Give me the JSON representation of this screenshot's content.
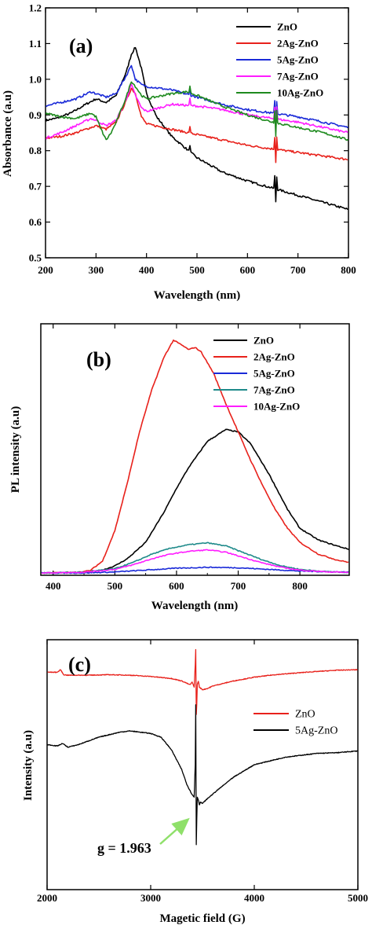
{
  "chart_data": [
    {
      "id": "a",
      "type": "line",
      "panel_label": "(a)",
      "xlabel": "Wavelength (nm)",
      "ylabel": "Absorbance (a.u)",
      "xlim": [
        200,
        800
      ],
      "ylim": [
        0.5,
        1.2
      ],
      "xticks": [
        200,
        300,
        400,
        500,
        600,
        700,
        800
      ],
      "yticks": [
        0.5,
        0.6,
        0.7,
        0.8,
        0.9,
        1.0,
        1.1,
        1.2
      ],
      "ytick_labels": [
        "0.5",
        "0.6",
        "0.7",
        "0.8",
        "0.9",
        "1.0",
        "1.1",
        "1.2"
      ],
      "legend_position": "top-right",
      "series": [
        {
          "name": "ZnO",
          "color": "#000000",
          "x": [
            200,
            220,
            250,
            280,
            300,
            320,
            340,
            360,
            370,
            378,
            390,
            400,
            420,
            450,
            500,
            550,
            600,
            650,
            700,
            750,
            800
          ],
          "y": [
            0.885,
            0.89,
            0.905,
            0.93,
            0.945,
            0.935,
            0.955,
            1.02,
            1.07,
            1.09,
            1.03,
            0.96,
            0.895,
            0.84,
            0.78,
            0.74,
            0.715,
            0.695,
            0.675,
            0.655,
            0.635
          ]
        },
        {
          "name": "2Ag-ZnO",
          "color": "#e8211b",
          "x": [
            200,
            230,
            260,
            300,
            320,
            340,
            360,
            370,
            378,
            390,
            400,
            450,
            500,
            550,
            600,
            650,
            700,
            750,
            800
          ],
          "y": [
            0.835,
            0.84,
            0.85,
            0.87,
            0.86,
            0.88,
            0.94,
            0.975,
            0.96,
            0.895,
            0.875,
            0.86,
            0.845,
            0.83,
            0.815,
            0.805,
            0.795,
            0.785,
            0.775
          ]
        },
        {
          "name": "5Ag-ZnO",
          "color": "#1a2ad8",
          "x": [
            200,
            230,
            260,
            290,
            300,
            320,
            340,
            360,
            370,
            378,
            390,
            400,
            450,
            500,
            550,
            600,
            650,
            700,
            750,
            800
          ],
          "y": [
            0.925,
            0.935,
            0.945,
            0.965,
            0.96,
            0.95,
            0.96,
            1.01,
            1.04,
            1.0,
            0.985,
            0.98,
            0.97,
            0.95,
            0.93,
            0.915,
            0.905,
            0.895,
            0.88,
            0.865
          ]
        },
        {
          "name": "7Ag-ZnO",
          "color": "#ff1cff",
          "x": [
            200,
            230,
            260,
            290,
            300,
            320,
            340,
            360,
            370,
            378,
            390,
            400,
            450,
            500,
            550,
            600,
            650,
            700,
            750,
            800
          ],
          "y": [
            0.835,
            0.85,
            0.87,
            0.89,
            0.885,
            0.87,
            0.885,
            0.945,
            0.985,
            0.955,
            0.92,
            0.91,
            0.93,
            0.925,
            0.915,
            0.9,
            0.89,
            0.88,
            0.865,
            0.85
          ]
        },
        {
          "name": "10Ag-ZnO",
          "color": "#1e8a1e",
          "x": [
            200,
            230,
            260,
            290,
            300,
            310,
            320,
            330,
            340,
            360,
            370,
            378,
            390,
            400,
            450,
            480,
            500,
            550,
            600,
            650,
            700,
            750,
            800
          ],
          "y": [
            0.905,
            0.895,
            0.89,
            0.905,
            0.895,
            0.86,
            0.83,
            0.85,
            0.88,
            0.95,
            0.995,
            0.98,
            0.955,
            0.945,
            0.96,
            0.965,
            0.955,
            0.925,
            0.9,
            0.88,
            0.865,
            0.85,
            0.83
          ]
        }
      ]
    },
    {
      "id": "b",
      "type": "line",
      "panel_label": "(b)",
      "xlabel": "Wavelength (nm)",
      "ylabel": "PL intensity (a.u)",
      "xlim": [
        380,
        880
      ],
      "ylim": [
        -0.01,
        1.06
      ],
      "xticks": [
        400,
        500,
        600,
        700,
        800
      ],
      "legend_position": "top-right",
      "series": [
        {
          "name": "ZnO",
          "color": "#000000",
          "x": [
            380,
            450,
            480,
            500,
            520,
            550,
            580,
            600,
            620,
            650,
            680,
            700,
            720,
            750,
            780,
            800,
            830,
            860,
            880
          ],
          "y": [
            0.0,
            0.003,
            0.012,
            0.03,
            0.06,
            0.13,
            0.26,
            0.36,
            0.45,
            0.56,
            0.61,
            0.6,
            0.55,
            0.42,
            0.27,
            0.19,
            0.14,
            0.115,
            0.1
          ]
        },
        {
          "name": "2Ag-ZnO",
          "color": "#e8211b",
          "x": [
            380,
            440,
            460,
            480,
            500,
            520,
            540,
            560,
            580,
            595,
            605,
            620,
            630,
            640,
            660,
            680,
            700,
            720,
            740,
            760,
            780,
            800,
            830,
            860,
            880
          ],
          "y": [
            0.0,
            0.002,
            0.01,
            0.05,
            0.18,
            0.38,
            0.6,
            0.78,
            0.92,
            0.99,
            0.975,
            0.95,
            0.96,
            0.94,
            0.85,
            0.72,
            0.6,
            0.48,
            0.37,
            0.27,
            0.19,
            0.13,
            0.08,
            0.055,
            0.045
          ]
        },
        {
          "name": "5Ag-ZnO",
          "color": "#1a2ad8",
          "x": [
            380,
            450,
            500,
            550,
            600,
            650,
            700,
            750,
            800,
            880
          ],
          "y": [
            0.0,
            0.0,
            0.004,
            0.012,
            0.02,
            0.024,
            0.022,
            0.015,
            0.008,
            0.003
          ]
        },
        {
          "name": "7Ag-ZnO",
          "color": "#1e8a8a",
          "x": [
            380,
            450,
            500,
            530,
            560,
            590,
            620,
            650,
            680,
            710,
            740,
            770,
            800,
            840,
            880
          ],
          "y": [
            0.0,
            0.003,
            0.018,
            0.045,
            0.08,
            0.105,
            0.12,
            0.128,
            0.115,
            0.085,
            0.055,
            0.03,
            0.015,
            0.006,
            0.002
          ]
        },
        {
          "name": "10Ag-ZnO",
          "color": "#ff1cff",
          "x": [
            380,
            450,
            500,
            530,
            560,
            590,
            620,
            650,
            680,
            710,
            740,
            770,
            800,
            840,
            880
          ],
          "y": [
            0.0,
            0.003,
            0.015,
            0.035,
            0.06,
            0.08,
            0.092,
            0.098,
            0.088,
            0.065,
            0.042,
            0.024,
            0.012,
            0.005,
            0.002
          ]
        }
      ]
    },
    {
      "id": "c",
      "type": "line",
      "panel_label": "(c)",
      "xlabel": "Magetic field (G)",
      "ylabel": "Intensity (a.u)",
      "xlim": [
        2000,
        5000
      ],
      "ylim": [
        0,
        1
      ],
      "xticks": [
        2000,
        3000,
        4000,
        5000
      ],
      "legend_position": "right",
      "annotation": "g = 1.963",
      "series": [
        {
          "name": "ZnO",
          "color": "#e8211b",
          "x": [
            2000,
            2100,
            2130,
            2160,
            2200,
            2400,
            2600,
            2800,
            3000,
            3200,
            3300,
            3380,
            3400,
            3420,
            3430,
            3435,
            3440,
            3445,
            3450,
            3460,
            3470,
            3500,
            3550,
            3600,
            3700,
            3800,
            4000,
            4200,
            4500,
            4800,
            5000
          ],
          "y": [
            0.87,
            0.87,
            0.88,
            0.86,
            0.858,
            0.858,
            0.86,
            0.858,
            0.853,
            0.845,
            0.835,
            0.82,
            0.83,
            0.81,
            0.9,
            0.96,
            0.7,
            0.74,
            0.82,
            0.835,
            0.81,
            0.8,
            0.805,
            0.815,
            0.825,
            0.835,
            0.85,
            0.86,
            0.87,
            0.878,
            0.88
          ]
        },
        {
          "name": "5Ag-ZnO",
          "color": "#000000",
          "x": [
            2000,
            2100,
            2150,
            2200,
            2300,
            2500,
            2700,
            2800,
            3000,
            3100,
            3200,
            3300,
            3350,
            3400,
            3420,
            3430,
            3435,
            3440,
            3445,
            3450,
            3460,
            3470,
            3480,
            3500,
            3550,
            3650,
            3800,
            4000,
            4300,
            4600,
            4800,
            5000
          ],
          "y": [
            0.58,
            0.575,
            0.585,
            0.57,
            0.58,
            0.61,
            0.63,
            0.635,
            0.625,
            0.61,
            0.56,
            0.48,
            0.42,
            0.38,
            0.37,
            0.5,
            0.74,
            0.18,
            0.28,
            0.37,
            0.36,
            0.34,
            0.35,
            0.345,
            0.365,
            0.4,
            0.45,
            0.5,
            0.53,
            0.545,
            0.548,
            0.555
          ]
        }
      ]
    }
  ]
}
